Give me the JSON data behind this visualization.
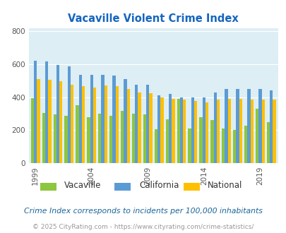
{
  "title": "Vacaville Violent Crime Index",
  "years": [
    1999,
    2000,
    2001,
    2002,
    2003,
    2004,
    2005,
    2006,
    2007,
    2008,
    2009,
    2010,
    2011,
    2012,
    2013,
    2014,
    2015,
    2016,
    2017,
    2018,
    2019,
    2020
  ],
  "vacaville": [
    395,
    305,
    295,
    285,
    350,
    280,
    300,
    285,
    315,
    300,
    295,
    205,
    265,
    390,
    210,
    280,
    260,
    210,
    200,
    225,
    330,
    250
  ],
  "california": [
    620,
    615,
    595,
    585,
    535,
    535,
    535,
    530,
    510,
    475,
    475,
    410,
    420,
    400,
    400,
    400,
    430,
    450,
    450,
    450,
    450,
    440
  ],
  "national": [
    510,
    505,
    495,
    475,
    465,
    460,
    470,
    465,
    450,
    430,
    425,
    400,
    390,
    385,
    375,
    370,
    385,
    390,
    390,
    385,
    385,
    385
  ],
  "vacaville_color": "#8dc63f",
  "california_color": "#5b9bd5",
  "national_color": "#ffc000",
  "background_color": "#ddeef4",
  "grid_color": "#ffffff",
  "ylabel_ticks": [
    0,
    200,
    400,
    600,
    800
  ],
  "ylim": [
    0,
    820
  ],
  "tick_years": [
    1999,
    2004,
    2009,
    2014,
    2019
  ],
  "subtitle": "Crime Index corresponds to incidents per 100,000 inhabitants",
  "footnote": "© 2025 CityRating.com - https://www.cityrating.com/crime-statistics/",
  "title_color": "#1565c0",
  "subtitle_color": "#1a6699",
  "footnote_color": "#999999",
  "legend_labels": [
    "Vacaville",
    "California",
    "National"
  ]
}
